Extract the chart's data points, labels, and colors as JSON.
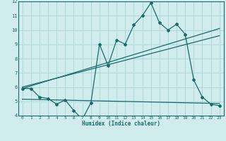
{
  "xlabel": "Humidex (Indice chaleur)",
  "bg_color": "#d0ecec",
  "grid_color": "#add8d8",
  "line_color": "#1a6b6b",
  "xlim": [
    -0.5,
    23.5
  ],
  "ylim": [
    4,
    12
  ],
  "xticks": [
    0,
    1,
    2,
    3,
    4,
    5,
    6,
    7,
    8,
    9,
    10,
    11,
    12,
    13,
    14,
    15,
    16,
    17,
    18,
    19,
    20,
    21,
    22,
    23
  ],
  "yticks": [
    4,
    5,
    6,
    7,
    8,
    9,
    10,
    11,
    12
  ],
  "main_x": [
    0,
    1,
    2,
    3,
    4,
    5,
    6,
    7,
    8,
    9,
    10,
    11,
    12,
    13,
    14,
    15,
    16,
    17,
    18,
    19,
    20,
    21,
    22,
    23
  ],
  "main_y": [
    5.9,
    5.9,
    5.3,
    5.2,
    4.8,
    5.1,
    4.35,
    3.75,
    4.9,
    9.0,
    7.5,
    9.3,
    9.0,
    10.35,
    11.0,
    11.9,
    10.5,
    10.0,
    10.4,
    9.7,
    6.5,
    5.3,
    4.8,
    4.7
  ],
  "line1_x": [
    0,
    23
  ],
  "line1_y": [
    5.9,
    10.1
  ],
  "line2_x": [
    0,
    23
  ],
  "line2_y": [
    6.0,
    9.6
  ],
  "line3_x": [
    0,
    23
  ],
  "line3_y": [
    5.15,
    4.85
  ]
}
